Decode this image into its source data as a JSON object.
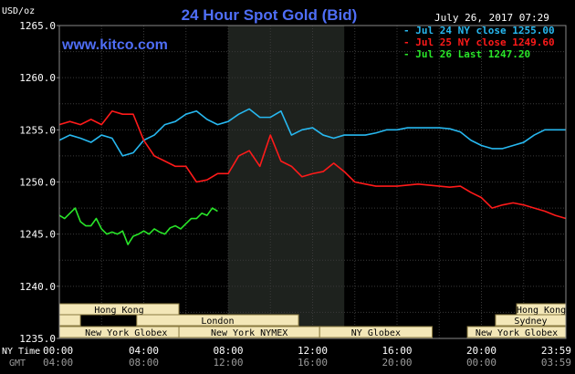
{
  "colors": {
    "background": "#000000",
    "plot_bg": "#000000",
    "night_band": "#1e221e",
    "grid": "#3a3a3a",
    "text": "#ffffff",
    "title": "#4f6ef7",
    "watermark": "#4f6ef7",
    "session_box_bg": "#f3e7b8",
    "session_box_border": "#8a7a40",
    "session_text": "#000000",
    "gmt_text": "#9a9a9a",
    "series_jul24": "#27b8f0",
    "series_jul25": "#ff1a1a",
    "series_jul26": "#29e629"
  },
  "header": {
    "unit_label": "USD/oz",
    "title": "24 Hour Spot Gold (Bid)",
    "timestamp": "July 26, 2017 07:29",
    "watermark": "www.kitco.com"
  },
  "legend": [
    {
      "text": "- Jul 24 NY close 1255.00",
      "color_key": "series_jul24"
    },
    {
      "text": "- Jul 25 NY close 1249.60",
      "color_key": "series_jul25"
    },
    {
      "text": "- Jul 26 Last 1247.20",
      "color_key": "series_jul26"
    }
  ],
  "sessions": [
    {
      "label": "Hong Kong",
      "start": 0.0,
      "end": 8.5
    },
    {
      "label": "",
      "start": 0.0,
      "end": 1.5
    },
    {
      "label": "London",
      "start": 5.5,
      "end": 17.0
    },
    {
      "label": "New York Globex",
      "start": 0.0,
      "end": 9.5
    },
    {
      "label": "New York NYMEX",
      "start": 8.5,
      "end": 18.5
    },
    {
      "label": "NY Globex",
      "start": 18.5,
      "end": 26.5
    },
    {
      "label": "Hong Kong",
      "start": 32.5,
      "end": 36.0
    },
    {
      "label": "Sydney",
      "start": 31.0,
      "end": 36.0
    },
    {
      "label": "New York Globex",
      "start": 29.0,
      "end": 36.0
    }
  ],
  "axis_labels": {
    "x_primary_name": "NY Time",
    "x_secondary_name": "GMT",
    "x_primary_ticks": [
      "00:00",
      "04:00",
      "08:00",
      "12:00",
      "16:00",
      "20:00",
      "23:59"
    ],
    "x_secondary_ticks": [
      "04:00",
      "08:00",
      "12:00",
      "16:00",
      "20:00",
      "00:00",
      "03:59"
    ],
    "y_ticks": [
      "1235.0",
      "1240.0",
      "1245.0",
      "1250.0",
      "1255.0",
      "1260.0",
      "1265.0"
    ]
  },
  "chart_data": {
    "type": "line",
    "title": "24 Hour Spot Gold (Bid)",
    "ylabel": "USD/oz",
    "xlabel": "NY Time",
    "xlim": [
      0,
      24
    ],
    "ylim": [
      1235,
      1265
    ],
    "night_band_x": [
      8.0,
      13.5
    ],
    "grid": true,
    "series": [
      {
        "name": "Jul 24 NY close 1255.00",
        "color_key": "series_jul24",
        "x": [
          0,
          0.5,
          1,
          1.5,
          2,
          2.5,
          3,
          3.5,
          4,
          4.5,
          5,
          5.5,
          6,
          6.5,
          7,
          7.5,
          8,
          8.5,
          9,
          9.5,
          10,
          10.5,
          11,
          11.5,
          12,
          12.5,
          13,
          13.5,
          14,
          14.5,
          15,
          15.5,
          16,
          16.5,
          17,
          17.5,
          18,
          18.5,
          19,
          19.5,
          20,
          20.5,
          21,
          21.5,
          22,
          22.5,
          23,
          23.5,
          24
        ],
        "y": [
          1254.0,
          1254.5,
          1254.2,
          1253.8,
          1254.5,
          1254.2,
          1252.5,
          1252.8,
          1254.0,
          1254.5,
          1255.5,
          1255.8,
          1256.5,
          1256.8,
          1256.0,
          1255.5,
          1255.8,
          1256.5,
          1257.0,
          1256.2,
          1256.2,
          1256.8,
          1254.5,
          1255.0,
          1255.2,
          1254.5,
          1254.2,
          1254.5,
          1254.5,
          1254.5,
          1254.7,
          1255.0,
          1255.0,
          1255.2,
          1255.2,
          1255.2,
          1255.2,
          1255.1,
          1254.8,
          1254.0,
          1253.5,
          1253.2,
          1253.2,
          1253.5,
          1253.8,
          1254.5,
          1255.0,
          1255.0,
          1255.0
        ]
      },
      {
        "name": "Jul 25 NY close 1249.60",
        "color_key": "series_jul25",
        "x": [
          0,
          0.5,
          1,
          1.5,
          2,
          2.5,
          3,
          3.5,
          4,
          4.5,
          5,
          5.5,
          6,
          6.5,
          7,
          7.5,
          8,
          8.5,
          9,
          9.5,
          10,
          10.5,
          11,
          11.5,
          12,
          12.5,
          13,
          13.5,
          14,
          14.5,
          15,
          15.5,
          16,
          16.5,
          17,
          17.5,
          18,
          18.5,
          19,
          19.5,
          20,
          20.5,
          21,
          21.5,
          22,
          22.5,
          23,
          23.5,
          24
        ],
        "y": [
          1255.5,
          1255.8,
          1255.5,
          1256.0,
          1255.5,
          1256.8,
          1256.5,
          1256.5,
          1254.0,
          1252.5,
          1252.0,
          1251.5,
          1251.5,
          1250.0,
          1250.2,
          1250.8,
          1250.8,
          1252.5,
          1253.0,
          1251.5,
          1254.5,
          1252.0,
          1251.5,
          1250.5,
          1250.8,
          1251.0,
          1251.8,
          1251.0,
          1250.0,
          1249.8,
          1249.6,
          1249.6,
          1249.6,
          1249.7,
          1249.8,
          1249.7,
          1249.6,
          1249.5,
          1249.6,
          1249.0,
          1248.5,
          1247.5,
          1247.8,
          1248.0,
          1247.8,
          1247.5,
          1247.2,
          1246.8,
          1246.5
        ]
      },
      {
        "name": "Jul 26 Last 1247.20",
        "color_key": "series_jul26",
        "x": [
          0,
          0.25,
          0.5,
          0.75,
          1,
          1.25,
          1.5,
          1.75,
          2,
          2.25,
          2.5,
          2.75,
          3,
          3.25,
          3.5,
          3.75,
          4,
          4.25,
          4.5,
          4.75,
          5,
          5.25,
          5.5,
          5.75,
          6,
          6.25,
          6.5,
          6.75,
          7,
          7.25,
          7.5
        ],
        "y": [
          1246.8,
          1246.5,
          1247.0,
          1247.5,
          1246.2,
          1245.8,
          1245.8,
          1246.5,
          1245.5,
          1245.0,
          1245.2,
          1245.0,
          1245.3,
          1244.0,
          1244.8,
          1245.0,
          1245.3,
          1245.0,
          1245.5,
          1245.2,
          1245.0,
          1245.6,
          1245.8,
          1245.5,
          1246.0,
          1246.5,
          1246.5,
          1247.0,
          1246.8,
          1247.5,
          1247.2
        ]
      }
    ]
  }
}
